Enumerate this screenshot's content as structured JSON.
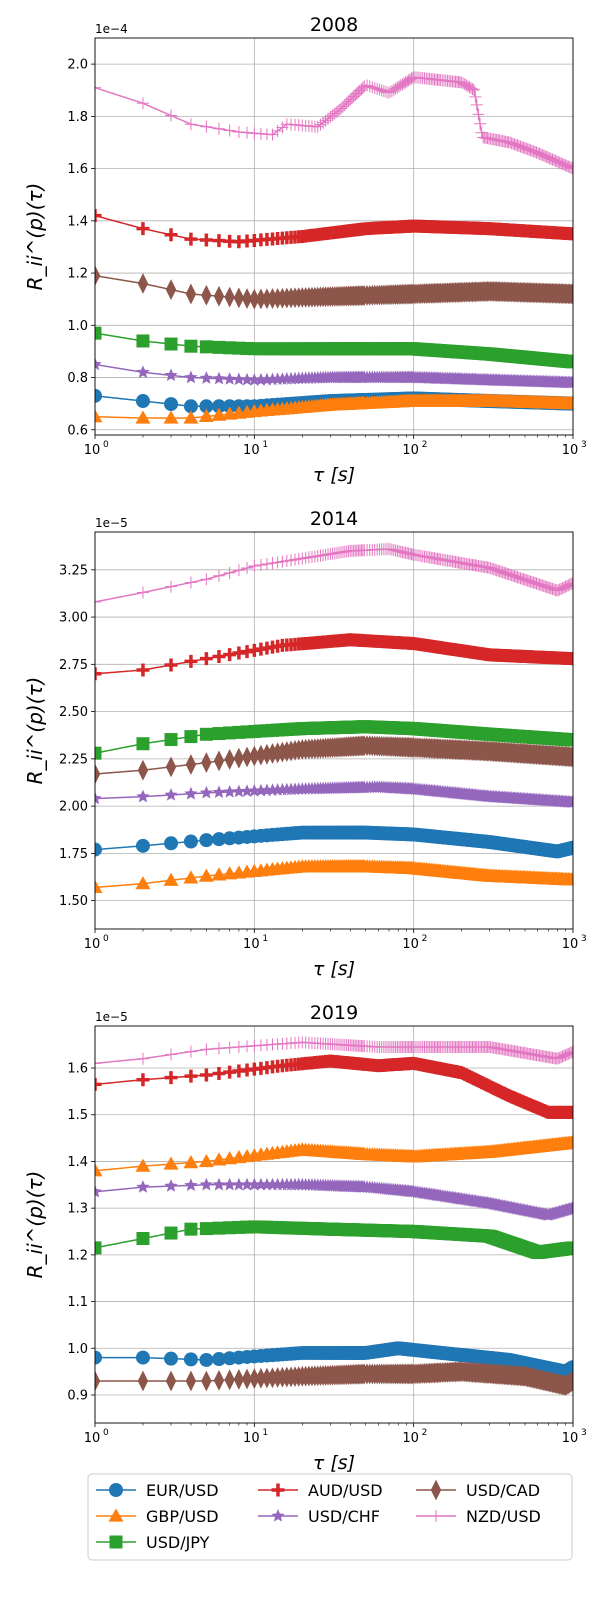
{
  "figure": {
    "legend": {
      "entries": [
        {
          "label": "EUR/USD",
          "marker": "circle"
        },
        {
          "label": "GBP/USD",
          "marker": "triangle"
        },
        {
          "label": "USD/JPY",
          "marker": "square"
        },
        {
          "label": "AUD/USD",
          "marker": "plus"
        },
        {
          "label": "USD/CHF",
          "marker": "star"
        },
        {
          "label": "USD/CAD",
          "marker": "diamond"
        },
        {
          "label": "NZD/USD",
          "marker": "thin-plus"
        }
      ]
    }
  },
  "series_colors": {
    "EUR/USD": "#1f77b4",
    "GBP/USD": "#ff7f0e",
    "USD/JPY": "#2ca02c",
    "AUD/USD": "#d62728",
    "USD/CHF": "#9467bd",
    "USD/CAD": "#8c564b",
    "NZD/USD": "#e377c2"
  },
  "chart_data": [
    {
      "type": "line",
      "title": "2008",
      "xlabel": "τ [s]",
      "ylabel": "R_ii^(p)(τ)",
      "xscale": "log",
      "xlim": [
        1,
        1000
      ],
      "x_ticks": [
        "10^0",
        "10^1",
        "10^2",
        "10^3"
      ],
      "ylim": [
        0.58,
        2.1
      ],
      "y_ticks": [
        "0.6",
        "0.8",
        "1.0",
        "1.2",
        "1.4",
        "1.6",
        "1.8",
        "2.0"
      ],
      "y_multiplier": "1e−4",
      "grid": true,
      "series": [
        {
          "name": "EUR/USD",
          "points": [
            [
              1,
              0.73
            ],
            [
              2,
              0.71
            ],
            [
              4,
              0.69
            ],
            [
              10,
              0.69
            ],
            [
              30,
              0.71
            ],
            [
              100,
              0.72
            ],
            [
              300,
              0.71
            ],
            [
              1000,
              0.7
            ]
          ]
        },
        {
          "name": "GBP/USD",
          "points": [
            [
              1,
              0.65
            ],
            [
              2,
              0.645
            ],
            [
              4,
              0.645
            ],
            [
              10,
              0.67
            ],
            [
              30,
              0.695
            ],
            [
              100,
              0.71
            ],
            [
              300,
              0.71
            ],
            [
              1000,
              0.7
            ]
          ]
        },
        {
          "name": "USD/JPY",
          "points": [
            [
              1,
              0.97
            ],
            [
              2,
              0.94
            ],
            [
              4,
              0.92
            ],
            [
              10,
              0.91
            ],
            [
              30,
              0.91
            ],
            [
              100,
              0.91
            ],
            [
              300,
              0.89
            ],
            [
              1000,
              0.86
            ]
          ]
        },
        {
          "name": "AUD/USD",
          "points": [
            [
              1,
              1.42
            ],
            [
              2,
              1.37
            ],
            [
              4,
              1.33
            ],
            [
              8,
              1.32
            ],
            [
              20,
              1.34
            ],
            [
              50,
              1.37
            ],
            [
              100,
              1.38
            ],
            [
              300,
              1.37
            ],
            [
              1000,
              1.35
            ]
          ]
        },
        {
          "name": "USD/CHF",
          "points": [
            [
              1,
              0.85
            ],
            [
              2,
              0.82
            ],
            [
              4,
              0.8
            ],
            [
              10,
              0.79
            ],
            [
              30,
              0.8
            ],
            [
              100,
              0.8
            ],
            [
              300,
              0.79
            ],
            [
              1000,
              0.78
            ]
          ]
        },
        {
          "name": "USD/CAD",
          "points": [
            [
              1,
              1.19
            ],
            [
              2,
              1.16
            ],
            [
              4,
              1.12
            ],
            [
              10,
              1.1
            ],
            [
              30,
              1.11
            ],
            [
              100,
              1.12
            ],
            [
              300,
              1.13
            ],
            [
              1000,
              1.12
            ]
          ]
        },
        {
          "name": "NZD/USD",
          "points": [
            [
              1,
              1.91
            ],
            [
              2,
              1.85
            ],
            [
              4,
              1.77
            ],
            [
              8,
              1.74
            ],
            [
              13,
              1.73
            ],
            [
              16,
              1.77
            ],
            [
              25,
              1.76
            ],
            [
              35,
              1.83
            ],
            [
              50,
              1.92
            ],
            [
              70,
              1.89
            ],
            [
              100,
              1.95
            ],
            [
              200,
              1.93
            ],
            [
              240,
              1.9
            ],
            [
              270,
              1.72
            ],
            [
              400,
              1.7
            ],
            [
              600,
              1.66
            ],
            [
              1000,
              1.6
            ]
          ]
        }
      ]
    },
    {
      "type": "line",
      "title": "2014",
      "xlabel": "τ [s]",
      "ylabel": "R_ii^(p)(τ)",
      "xscale": "log",
      "xlim": [
        1,
        1000
      ],
      "x_ticks": [
        "10^0",
        "10^1",
        "10^2",
        "10^3"
      ],
      "ylim": [
        1.35,
        3.45
      ],
      "y_ticks": [
        "1.50",
        "1.75",
        "2.00",
        "2.25",
        "2.50",
        "2.75",
        "3.00",
        "3.25"
      ],
      "y_multiplier": "1e−5",
      "grid": true,
      "series": [
        {
          "name": "EUR/USD",
          "points": [
            [
              1,
              1.77
            ],
            [
              2,
              1.79
            ],
            [
              5,
              1.82
            ],
            [
              20,
              1.86
            ],
            [
              50,
              1.86
            ],
            [
              100,
              1.85
            ],
            [
              300,
              1.81
            ],
            [
              800,
              1.76
            ],
            [
              1000,
              1.78
            ]
          ]
        },
        {
          "name": "GBP/USD",
          "points": [
            [
              1,
              1.57
            ],
            [
              2,
              1.59
            ],
            [
              5,
              1.63
            ],
            [
              20,
              1.68
            ],
            [
              50,
              1.68
            ],
            [
              100,
              1.67
            ],
            [
              300,
              1.63
            ],
            [
              1000,
              1.61
            ]
          ]
        },
        {
          "name": "USD/JPY",
          "points": [
            [
              1,
              2.28
            ],
            [
              2,
              2.33
            ],
            [
              5,
              2.38
            ],
            [
              20,
              2.41
            ],
            [
              50,
              2.42
            ],
            [
              100,
              2.41
            ],
            [
              300,
              2.38
            ],
            [
              1000,
              2.35
            ]
          ]
        },
        {
          "name": "AUD/USD",
          "points": [
            [
              1,
              2.7
            ],
            [
              2,
              2.72
            ],
            [
              5,
              2.78
            ],
            [
              15,
              2.85
            ],
            [
              40,
              2.88
            ],
            [
              100,
              2.86
            ],
            [
              300,
              2.8
            ],
            [
              1000,
              2.78
            ]
          ]
        },
        {
          "name": "USD/CHF",
          "points": [
            [
              1,
              2.04
            ],
            [
              2,
              2.05
            ],
            [
              5,
              2.07
            ],
            [
              20,
              2.09
            ],
            [
              60,
              2.1
            ],
            [
              100,
              2.09
            ],
            [
              300,
              2.05
            ],
            [
              1000,
              2.02
            ]
          ]
        },
        {
          "name": "USD/CAD",
          "points": [
            [
              1,
              2.17
            ],
            [
              2,
              2.19
            ],
            [
              5,
              2.23
            ],
            [
              20,
              2.3
            ],
            [
              50,
              2.32
            ],
            [
              100,
              2.31
            ],
            [
              300,
              2.29
            ],
            [
              1000,
              2.26
            ]
          ]
        },
        {
          "name": "NZD/USD",
          "points": [
            [
              1,
              3.08
            ],
            [
              2,
              3.13
            ],
            [
              5,
              3.2
            ],
            [
              10,
              3.27
            ],
            [
              20,
              3.31
            ],
            [
              40,
              3.35
            ],
            [
              70,
              3.36
            ],
            [
              100,
              3.33
            ],
            [
              300,
              3.26
            ],
            [
              800,
              3.14
            ],
            [
              1000,
              3.18
            ]
          ]
        }
      ]
    },
    {
      "type": "line",
      "title": "2019",
      "xlabel": "τ [s]",
      "ylabel": "R_ii^(p)(τ)",
      "xscale": "log",
      "xlim": [
        1,
        1000
      ],
      "x_ticks": [
        "10^0",
        "10^1",
        "10^2",
        "10^3"
      ],
      "ylim": [
        0.84,
        1.69
      ],
      "y_ticks": [
        "0.9",
        "1.0",
        "1.1",
        "1.2",
        "1.3",
        "1.4",
        "1.5",
        "1.6"
      ],
      "y_multiplier": "1e−5",
      "grid": true,
      "series": [
        {
          "name": "EUR/USD",
          "points": [
            [
              1,
              0.98
            ],
            [
              2,
              0.98
            ],
            [
              5,
              0.975
            ],
            [
              20,
              0.99
            ],
            [
              50,
              0.99
            ],
            [
              80,
              1.0
            ],
            [
              150,
              0.99
            ],
            [
              400,
              0.975
            ],
            [
              900,
              0.95
            ],
            [
              1000,
              0.96
            ]
          ]
        },
        {
          "name": "GBP/USD",
          "points": [
            [
              1,
              1.38
            ],
            [
              2,
              1.39
            ],
            [
              5,
              1.4
            ],
            [
              20,
              1.425
            ],
            [
              50,
              1.415
            ],
            [
              100,
              1.41
            ],
            [
              300,
              1.42
            ],
            [
              1000,
              1.44
            ]
          ]
        },
        {
          "name": "USD/JPY",
          "points": [
            [
              1,
              1.215
            ],
            [
              2,
              1.235
            ],
            [
              4,
              1.255
            ],
            [
              10,
              1.26
            ],
            [
              30,
              1.255
            ],
            [
              100,
              1.25
            ],
            [
              300,
              1.24
            ],
            [
              600,
              1.205
            ],
            [
              1000,
              1.215
            ]
          ]
        },
        {
          "name": "AUD/USD",
          "points": [
            [
              1,
              1.565
            ],
            [
              2,
              1.575
            ],
            [
              5,
              1.585
            ],
            [
              15,
              1.605
            ],
            [
              30,
              1.615
            ],
            [
              60,
              1.605
            ],
            [
              100,
              1.61
            ],
            [
              200,
              1.59
            ],
            [
              400,
              1.54
            ],
            [
              700,
              1.505
            ],
            [
              1000,
              1.505
            ]
          ]
        },
        {
          "name": "USD/CHF",
          "points": [
            [
              1,
              1.335
            ],
            [
              2,
              1.345
            ],
            [
              5,
              1.35
            ],
            [
              20,
              1.35
            ],
            [
              50,
              1.345
            ],
            [
              100,
              1.335
            ],
            [
              300,
              1.31
            ],
            [
              700,
              1.285
            ],
            [
              1000,
              1.3
            ]
          ]
        },
        {
          "name": "USD/CAD",
          "points": [
            [
              1,
              0.93
            ],
            [
              2,
              0.93
            ],
            [
              5,
              0.93
            ],
            [
              20,
              0.94
            ],
            [
              50,
              0.945
            ],
            [
              100,
              0.945
            ],
            [
              200,
              0.95
            ],
            [
              500,
              0.94
            ],
            [
              900,
              0.92
            ],
            [
              1000,
              0.93
            ]
          ]
        },
        {
          "name": "NZD/USD",
          "points": [
            [
              1,
              1.61
            ],
            [
              2,
              1.62
            ],
            [
              5,
              1.64
            ],
            [
              20,
              1.655
            ],
            [
              60,
              1.645
            ],
            [
              100,
              1.645
            ],
            [
              300,
              1.645
            ],
            [
              800,
              1.62
            ],
            [
              1000,
              1.635
            ]
          ]
        }
      ]
    }
  ]
}
